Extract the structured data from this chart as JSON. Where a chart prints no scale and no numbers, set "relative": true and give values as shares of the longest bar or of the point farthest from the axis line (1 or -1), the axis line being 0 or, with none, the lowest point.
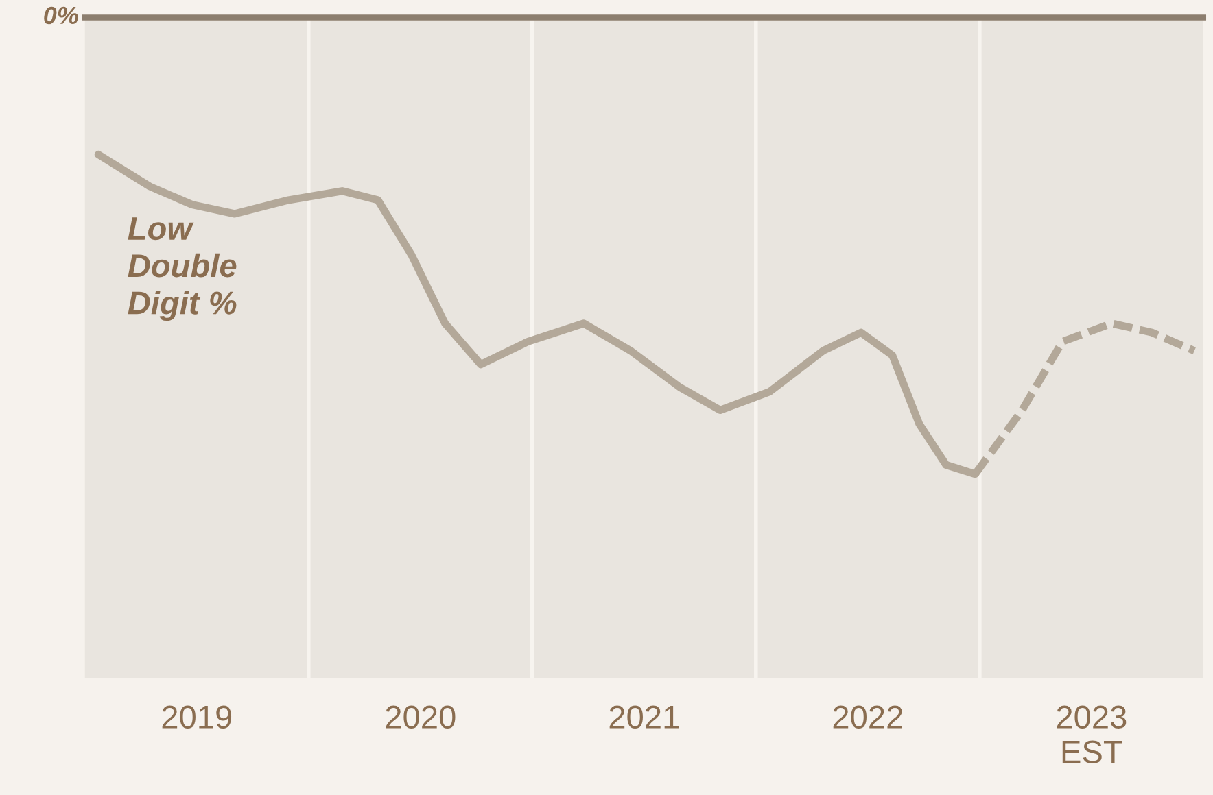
{
  "chart_data": {
    "type": "line",
    "relative": true,
    "xlim": [
      2018.5,
      2023.5
    ],
    "xticks": [
      {
        "value": 2019,
        "label": "2019"
      },
      {
        "value": 2020,
        "label": "2020"
      },
      {
        "value": 2021,
        "label": "2021"
      },
      {
        "value": 2022,
        "label": "2022"
      },
      {
        "value": 2023,
        "label": "2023\nEST"
      }
    ],
    "series": [
      {
        "color": "#b3a899",
        "line_style": "solid",
        "x": [
          2018.56,
          2018.79,
          2018.98,
          2019.17,
          2019.41,
          2019.65,
          2019.81,
          2019.96,
          2020.11,
          2020.27,
          2020.48,
          2020.73,
          2020.94,
          2021.16,
          2021.34,
          2021.56,
          2021.8,
          2021.97,
          2022.11,
          2022.23,
          2022.35,
          2022.48
        ],
        "values": [
          -0.3,
          -0.37,
          -0.41,
          -0.43,
          -0.4,
          -0.38,
          -0.4,
          -0.52,
          -0.67,
          -0.76,
          -0.71,
          -0.67,
          -0.73,
          -0.81,
          -0.86,
          -0.82,
          -0.73,
          -0.69,
          -0.74,
          -0.89,
          -0.98,
          -1.0
        ]
      },
      {
        "color": "#b3a899",
        "line_style": "dashed",
        "x": [
          2022.48,
          2022.69,
          2022.87,
          2023.09,
          2023.27,
          2023.46
        ],
        "values": [
          -1.0,
          -0.86,
          -0.71,
          -0.67,
          -0.69,
          -0.73
        ]
      }
    ],
    "ref_lines": [
      {
        "axis": "x",
        "value": 2019.5,
        "color": "#f7f4ef"
      },
      {
        "axis": "x",
        "value": 2020.5,
        "color": "#f7f4ef"
      },
      {
        "axis": "x",
        "value": 2021.5,
        "color": "#f7f4ef"
      },
      {
        "axis": "x",
        "value": 2022.5,
        "color": "#f7f4ef"
      }
    ],
    "annotations": [
      "0%",
      "Low\nDouble\nDigit %"
    ],
    "grid": false,
    "legend": false
  }
}
